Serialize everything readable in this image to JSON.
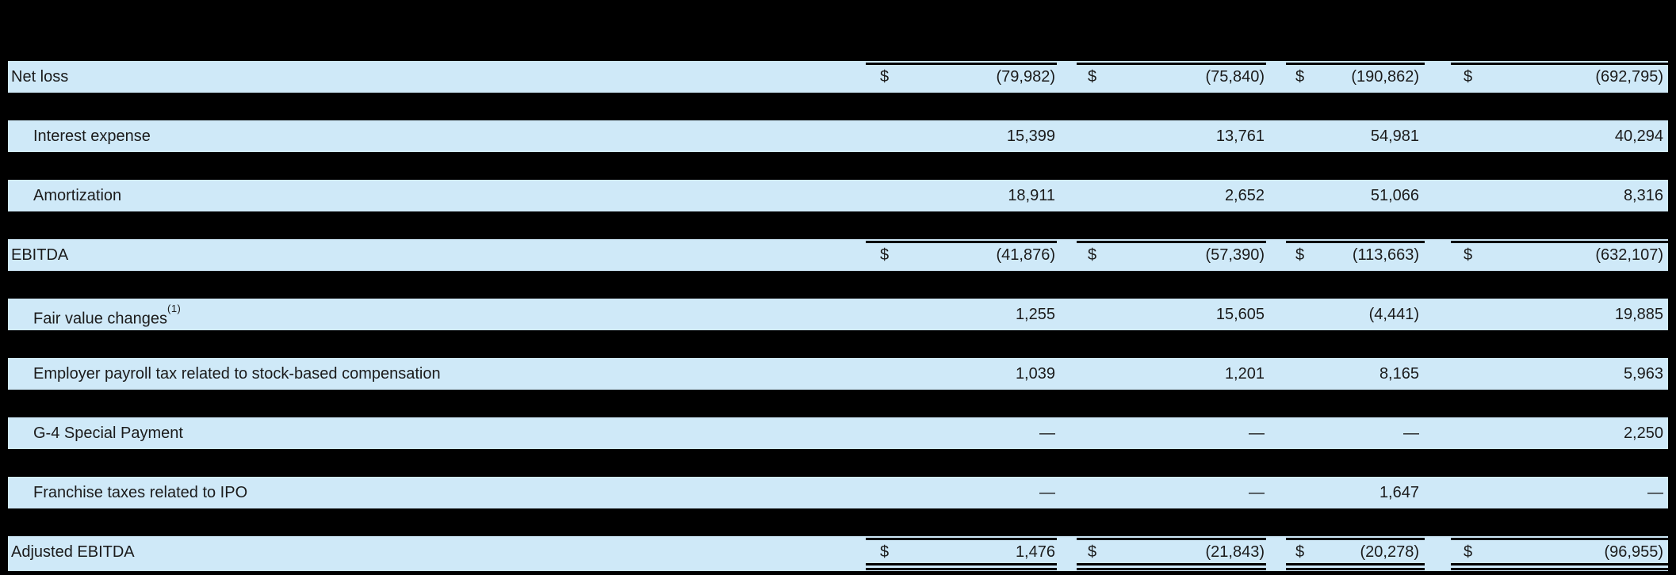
{
  "colors": {
    "background": "#000000",
    "row_fill": "#cfe9f8",
    "text": "#1b1b1b",
    "rule": "#000000"
  },
  "table": {
    "dollar_symbol": "$",
    "rows": [
      {
        "label": "Net loss",
        "indent": false,
        "dollar": true,
        "top_rule": true,
        "double_underline": false,
        "values": [
          "(79,982)",
          "(75,840)",
          "(190,862)",
          "(692,795)"
        ]
      },
      {
        "label": "Interest expense",
        "indent": true,
        "dollar": false,
        "top_rule": false,
        "double_underline": false,
        "values": [
          "15,399",
          "13,761",
          "54,981",
          "40,294"
        ]
      },
      {
        "label": "Amortization",
        "indent": true,
        "dollar": false,
        "top_rule": false,
        "double_underline": false,
        "values": [
          "18,911",
          "2,652",
          "51,066",
          "8,316"
        ]
      },
      {
        "label": "EBITDA",
        "indent": false,
        "dollar": true,
        "top_rule": true,
        "double_underline": false,
        "values": [
          "(41,876)",
          "(57,390)",
          "(113,663)",
          "(632,107)"
        ]
      },
      {
        "label": "Fair value changes",
        "superscript": "(1)",
        "indent": true,
        "dollar": false,
        "top_rule": false,
        "double_underline": false,
        "values": [
          "1,255",
          "15,605",
          "(4,441)",
          "19,885"
        ]
      },
      {
        "label": "Employer payroll tax related to stock-based compensation",
        "indent": true,
        "dollar": false,
        "top_rule": false,
        "double_underline": false,
        "values": [
          "1,039",
          "1,201",
          "8,165",
          "5,963"
        ]
      },
      {
        "label": "G-4 Special Payment",
        "indent": true,
        "dollar": false,
        "top_rule": false,
        "double_underline": false,
        "values": [
          "—",
          "—",
          "—",
          "2,250"
        ]
      },
      {
        "label": "Franchise taxes related to IPO",
        "indent": true,
        "dollar": false,
        "top_rule": false,
        "double_underline": false,
        "values": [
          "—",
          "—",
          "1,647",
          "—"
        ]
      },
      {
        "label": "Adjusted EBITDA",
        "indent": false,
        "dollar": true,
        "top_rule": true,
        "double_underline": true,
        "values": [
          "1,476",
          "(21,843)",
          "(20,278)",
          "(96,955)"
        ]
      }
    ]
  }
}
